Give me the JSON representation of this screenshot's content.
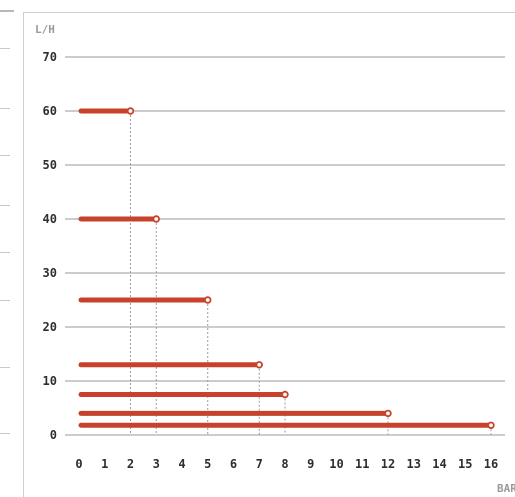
{
  "chart_data": {
    "type": "bar",
    "orientation": "horizontal",
    "title": "",
    "ylabel": "L/H",
    "xlabel": "BAR",
    "x_ticks": [
      0,
      1,
      2,
      3,
      4,
      5,
      6,
      7,
      8,
      9,
      10,
      11,
      12,
      13,
      14,
      15,
      16
    ],
    "y_ticks": [
      0,
      10,
      20,
      30,
      40,
      50,
      60,
      70
    ],
    "xlim": [
      0,
      16
    ],
    "ylim": [
      0,
      70
    ],
    "grid": "horizontal",
    "colors": {
      "bar": "#c8412b",
      "grid": "#9a9a9a"
    },
    "points": [
      {
        "x": 2,
        "y": 60
      },
      {
        "x": 3,
        "y": 40
      },
      {
        "x": 5,
        "y": 25
      },
      {
        "x": 7,
        "y": 13
      },
      {
        "x": 8,
        "y": 7.5
      },
      {
        "x": 12,
        "y": 4
      },
      {
        "x": 16,
        "y": 1.8
      }
    ]
  }
}
